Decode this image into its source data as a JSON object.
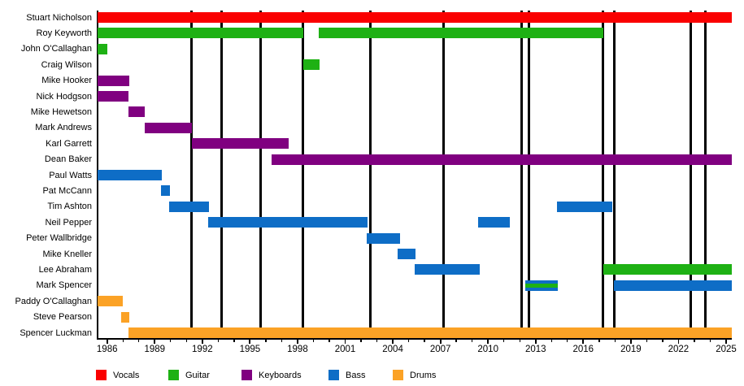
{
  "colors": {
    "vocals": "#fa0000",
    "guitar": "#1eb114",
    "keyboards": "#800080",
    "bass": "#0e6dc6",
    "drums": "#fba226",
    "axis": "#000000",
    "release_line": "#000000"
  },
  "legend": [
    {
      "label": "Vocals",
      "role": "vocals"
    },
    {
      "label": "Guitar",
      "role": "guitar"
    },
    {
      "label": "Keyboards",
      "role": "keyboards"
    },
    {
      "label": "Bass",
      "role": "bass"
    },
    {
      "label": "Drums",
      "role": "drums"
    }
  ],
  "chart_data": {
    "type": "timeline",
    "description": "Band members tenure timeline; vertical black lines mark album releases",
    "x_axis": {
      "min": 1985.4,
      "max": 2025.42,
      "labeled_tick_years": [
        1986,
        1989,
        1992,
        1995,
        1998,
        2001,
        2004,
        2007,
        2010,
        2013,
        2016,
        2019,
        2022,
        2025
      ],
      "minor_ticks_every": 1,
      "grid": false
    },
    "release_lines": [
      1991.34,
      1993.2,
      1995.65,
      1998.36,
      2002.61,
      2007.22,
      2012.14,
      2012.58,
      2017.26,
      2017.96,
      2022.77,
      2023.67
    ],
    "legend_position": "bottom",
    "members": [
      {
        "name": "Stuart Nicholson",
        "segments": [
          {
            "from": 1985.4,
            "to": 2025.42,
            "roles": [
              "vocals"
            ]
          }
        ]
      },
      {
        "name": "Roy Keyworth",
        "segments": [
          {
            "from": 1985.4,
            "to": 1998.36,
            "roles": [
              "guitar"
            ]
          },
          {
            "from": 1999.32,
            "to": 2017.25,
            "roles": [
              "guitar"
            ]
          }
        ]
      },
      {
        "name": "John O'Callaghan",
        "segments": [
          {
            "from": 1985.4,
            "to": 1986.02,
            "roles": [
              "guitar"
            ]
          }
        ]
      },
      {
        "name": "Craig Wilson",
        "segments": [
          {
            "from": 1998.37,
            "to": 1999.37,
            "roles": [
              "guitar"
            ]
          }
        ]
      },
      {
        "name": "Mike Hooker",
        "segments": [
          {
            "from": 1985.4,
            "to": 1987.4,
            "roles": [
              "keyboards"
            ]
          }
        ]
      },
      {
        "name": "Nick Hodgson",
        "segments": [
          {
            "from": 1985.4,
            "to": 1987.37,
            "roles": [
              "keyboards"
            ]
          }
        ]
      },
      {
        "name": "Mike Hewetson",
        "segments": [
          {
            "from": 1987.33,
            "to": 1988.39,
            "roles": [
              "keyboards"
            ]
          }
        ]
      },
      {
        "name": "Mark Andrews",
        "segments": [
          {
            "from": 1988.36,
            "to": 1991.34,
            "roles": [
              "keyboards"
            ]
          }
        ]
      },
      {
        "name": "Karl Garrett",
        "segments": [
          {
            "from": 1991.34,
            "to": 1997.44,
            "roles": [
              "keyboards"
            ]
          }
        ]
      },
      {
        "name": "Dean Baker",
        "segments": [
          {
            "from": 1996.37,
            "to": 2025.42,
            "roles": [
              "keyboards"
            ]
          }
        ]
      },
      {
        "name": "Paul Watts",
        "segments": [
          {
            "from": 1985.4,
            "to": 1989.46,
            "roles": [
              "bass"
            ]
          }
        ]
      },
      {
        "name": "Pat McCann",
        "segments": [
          {
            "from": 1989.41,
            "to": 1989.96,
            "roles": [
              "bass"
            ]
          }
        ]
      },
      {
        "name": "Tim Ashton",
        "segments": [
          {
            "from": 1989.92,
            "to": 1992.4,
            "roles": [
              "bass"
            ]
          },
          {
            "from": 2014.34,
            "to": 2017.84,
            "roles": [
              "bass"
            ]
          }
        ]
      },
      {
        "name": "Neil Pepper",
        "segments": [
          {
            "from": 1992.35,
            "to": 2002.39,
            "roles": [
              "bass"
            ]
          },
          {
            "from": 2009.39,
            "to": 2011.36,
            "roles": [
              "bass"
            ]
          }
        ]
      },
      {
        "name": "Peter Wallbridge",
        "segments": [
          {
            "from": 2002.34,
            "to": 2004.44,
            "roles": [
              "bass"
            ]
          }
        ]
      },
      {
        "name": "Mike Kneller",
        "segments": [
          {
            "from": 2004.32,
            "to": 2005.43,
            "roles": [
              "bass"
            ]
          }
        ]
      },
      {
        "name": "Lee Abraham",
        "segments": [
          {
            "from": 2005.38,
            "to": 2009.48,
            "roles": [
              "bass"
            ]
          },
          {
            "from": 2017.26,
            "to": 2025.42,
            "roles": [
              "guitar"
            ]
          }
        ]
      },
      {
        "name": "Mark Spencer",
        "segments": [
          {
            "from": 2012.33,
            "to": 2014.38,
            "roles": [
              "bass",
              "guitar"
            ]
          },
          {
            "from": 2017.93,
            "to": 2025.42,
            "roles": [
              "bass"
            ]
          }
        ]
      },
      {
        "name": "Paddy O'Callaghan",
        "segments": [
          {
            "from": 1985.4,
            "to": 1986.99,
            "roles": [
              "drums"
            ]
          }
        ]
      },
      {
        "name": "Steve Pearson",
        "segments": [
          {
            "from": 1986.9,
            "to": 1987.41,
            "roles": [
              "drums"
            ]
          }
        ]
      },
      {
        "name": "Spencer Luckman",
        "segments": [
          {
            "from": 1987.33,
            "to": 2025.42,
            "roles": [
              "drums"
            ]
          }
        ]
      }
    ]
  }
}
